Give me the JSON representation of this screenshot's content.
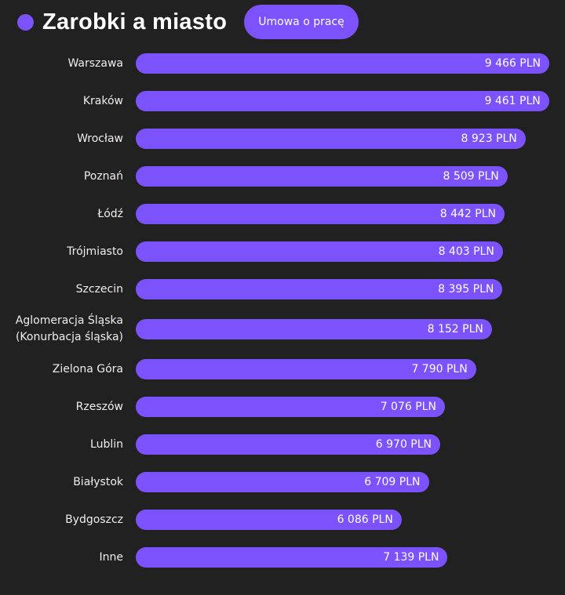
{
  "header": {
    "title": "Zarobki a miasto",
    "contract_button": "Umowa o pracę"
  },
  "colors": {
    "bar": "#7b52fb",
    "background": "#222121"
  },
  "chart_data": {
    "type": "bar",
    "orientation": "horizontal",
    "unit": "PLN",
    "categories": [
      "Warszawa",
      "Kraków",
      "Wrocław",
      "Poznań",
      "Łódź",
      "Trójmiasto",
      "Szczecin",
      "Aglomeracja Śląska\n(Konurbacja śląska)",
      "Zielona Góra",
      "Rzeszów",
      "Lublin",
      "Białystok",
      "Bydgoszcz",
      "Inne"
    ],
    "values": [
      9466,
      9461,
      8923,
      8509,
      8442,
      8403,
      8395,
      8152,
      7790,
      7076,
      6970,
      6709,
      6086,
      7139
    ],
    "value_labels": [
      "9 466 PLN",
      "9 461 PLN",
      "8 923 PLN",
      "8 509 PLN",
      "8 442 PLN",
      "8 403 PLN",
      "8 395 PLN",
      "8 152 PLN",
      "7 790 PLN",
      "7 076 PLN",
      "6 970 PLN",
      "6 709 PLN",
      "6 086 PLN",
      "7 139 PLN"
    ],
    "grid": false
  }
}
